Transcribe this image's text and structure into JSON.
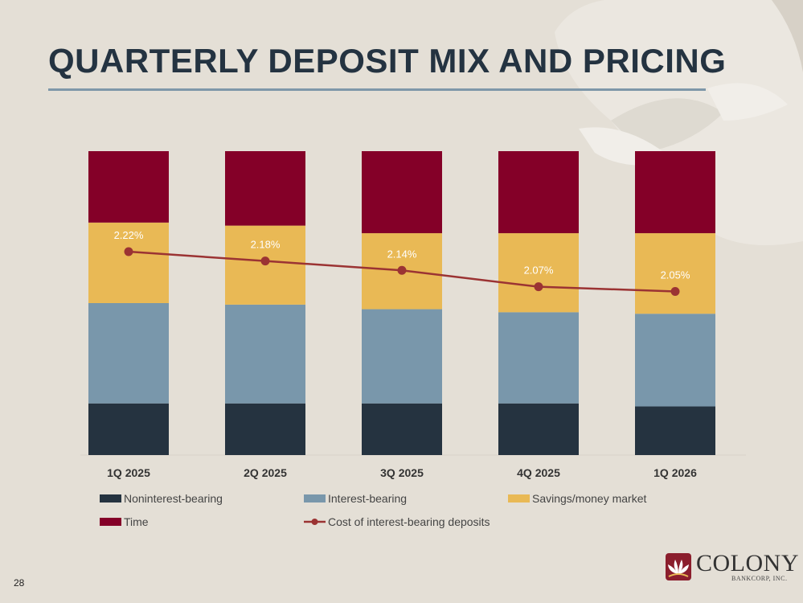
{
  "slide": {
    "title": "QUARTERLY DEPOSIT MIX AND PRICING",
    "page_number": "28"
  },
  "logo": {
    "name": "COLONY",
    "subtitle": "BANKCORP, INC."
  },
  "colors": {
    "noninterest": "#253340",
    "interest": "#7997ab",
    "savings": "#e9b955",
    "time": "#840028",
    "cost_line": "#9b3333",
    "title": "#243341"
  },
  "chart_data": {
    "type": "bar",
    "stacked": true,
    "categories": [
      "1Q 2025",
      "2Q 2025",
      "3Q 2025",
      "4Q 2025",
      "1Q 2026"
    ],
    "series": [
      {
        "name": "Noninterest-bearing",
        "kind": "bar",
        "values": [
          17.0,
          17.0,
          17.0,
          17.0,
          16.0
        ]
      },
      {
        "name": "Interest-bearing",
        "kind": "bar",
        "values": [
          33.0,
          32.5,
          31.0,
          30.0,
          30.5
        ]
      },
      {
        "name": "Savings/money market",
        "kind": "bar",
        "values": [
          26.5,
          26.0,
          25.0,
          26.0,
          26.5
        ]
      },
      {
        "name": "Time",
        "kind": "bar",
        "values": [
          23.5,
          24.5,
          27.0,
          27.0,
          27.0
        ]
      },
      {
        "name": "Cost of interest-bearing deposits",
        "kind": "line",
        "values": [
          2.22,
          2.18,
          2.14,
          2.07,
          2.05
        ],
        "labels": [
          "2.22%",
          "2.18%",
          "2.14%",
          "2.07%",
          "2.05%"
        ]
      }
    ],
    "ylim": [
      0,
      100
    ],
    "line_ylim": [
      1.35,
      2.65
    ],
    "grid": false,
    "legend": "bottom"
  }
}
